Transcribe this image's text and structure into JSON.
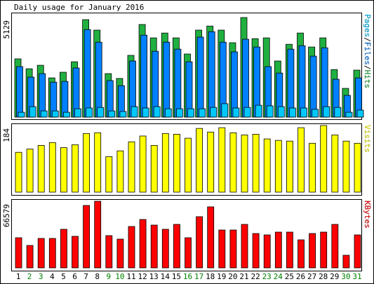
{
  "chart_data": [
    {
      "type": "bar",
      "title": "Daily usage for January 2016",
      "legend_separator": "/",
      "series": [
        {
          "name": "Pages",
          "color": "#00c8ff",
          "values": [
            250,
            540,
            320,
            320,
            250,
            430,
            470,
            500,
            320,
            290,
            540,
            470,
            540,
            430,
            430,
            430,
            430,
            500,
            690,
            470,
            500,
            610,
            580,
            540,
            470,
            470,
            400,
            540,
            500,
            250,
            360
          ]
        },
        {
          "name": "Files",
          "color": "#0080ff",
          "values": [
            2600,
            2060,
            2240,
            1800,
            1840,
            2530,
            4510,
            3860,
            1880,
            1620,
            2890,
            4220,
            3390,
            3860,
            3500,
            2850,
            4120,
            4400,
            3860,
            3360,
            4010,
            3610,
            2600,
            2270,
            3500,
            3680,
            3140,
            3570,
            1950,
            1120,
            2020
          ]
        },
        {
          "name": "Hits",
          "color": "#20b040",
          "values": [
            3000,
            2490,
            2670,
            2020,
            2310,
            2850,
            5020,
            4480,
            2240,
            1990,
            3180,
            4770,
            4080,
            4330,
            4080,
            3250,
            4480,
            4690,
            4480,
            3830,
            5129,
            4040,
            4080,
            2890,
            3750,
            4330,
            3610,
            4080,
            2450,
            1480,
            2420
          ]
        }
      ],
      "ylim": [
        0,
        5129
      ],
      "yticks": [
        5129
      ]
    },
    {
      "type": "bar",
      "series": [
        {
          "name": "Visits",
          "color": "#ffff00",
          "values": [
            110,
            119,
            129,
            137,
            123,
            131,
            162,
            164,
            98,
            114,
            139,
            155,
            129,
            162,
            160,
            149,
            176,
            166,
            178,
            164,
            158,
            160,
            147,
            143,
            141,
            178,
            135,
            184,
            158,
            141,
            135
          ]
        }
      ],
      "ylim": [
        0,
        184
      ],
      "yticks": [
        184
      ]
    },
    {
      "type": "bar",
      "series": [
        {
          "name": "KBytes",
          "color": "#ff0000",
          "values": [
            30140,
            22430,
            29440,
            29440,
            38560,
            31550,
            62390,
            66579,
            32250,
            28740,
            41360,
            48370,
            42760,
            38560,
            43460,
            30140,
            51170,
            60990,
            37850,
            37850,
            43460,
            34350,
            32950,
            35750,
            35750,
            28040,
            34350,
            35750,
            43460,
            12620,
            32950
          ]
        }
      ],
      "ylim": [
        0,
        66579
      ],
      "yticks": [
        66579
      ],
      "categories": [
        "1",
        "2",
        "3",
        "4",
        "5",
        "6",
        "7",
        "8",
        "9",
        "10",
        "11",
        "12",
        "13",
        "14",
        "15",
        "16",
        "17",
        "18",
        "19",
        "20",
        "21",
        "22",
        "23",
        "24",
        "25",
        "26",
        "27",
        "28",
        "29",
        "30",
        "31"
      ],
      "category_colors": [
        "#000000",
        "#008000",
        "#008000",
        "#000000",
        "#000000",
        "#000000",
        "#000000",
        "#000000",
        "#008000",
        "#008000",
        "#000000",
        "#000000",
        "#000000",
        "#000000",
        "#000000",
        "#008000",
        "#008000",
        "#000000",
        "#000000",
        "#000000",
        "#000000",
        "#000000",
        "#008000",
        "#008000",
        "#000000",
        "#000000",
        "#000000",
        "#000000",
        "#000000",
        "#008000",
        "#008000"
      ]
    }
  ]
}
